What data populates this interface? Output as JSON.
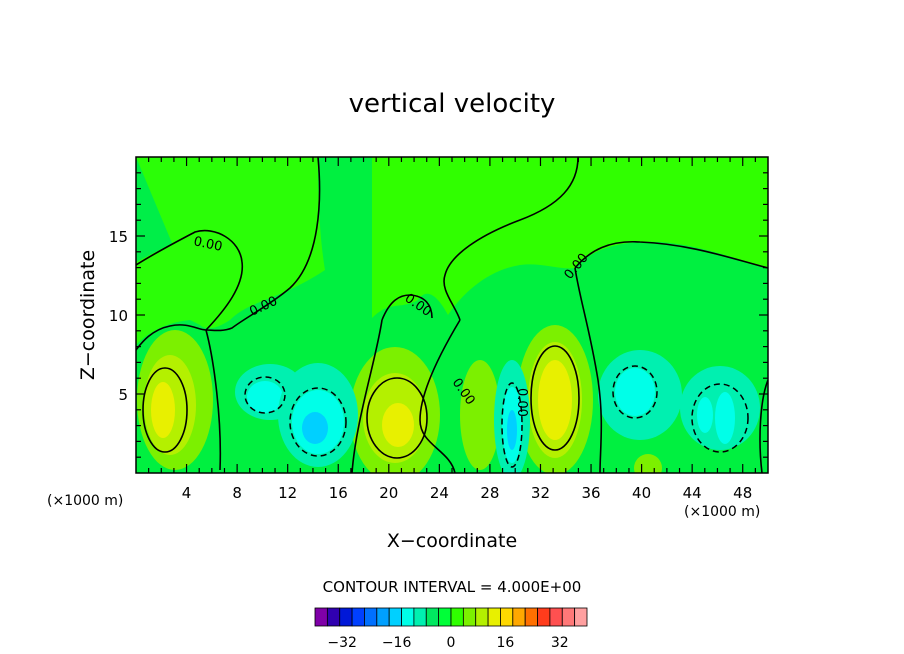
{
  "chart_data": {
    "type": "heatmap",
    "title": "vertical velocity",
    "xlabel": "X−coordinate",
    "ylabel": "Z−coordinate",
    "x_unit_left": "(×1000 m)",
    "x_unit_right": "(×1000 m)",
    "xlim": [
      0,
      50
    ],
    "ylim": [
      0,
      20
    ],
    "x_ticks": [
      4,
      8,
      12,
      16,
      20,
      24,
      28,
      32,
      36,
      40,
      44,
      48
    ],
    "y_ticks": [
      5,
      10,
      15
    ],
    "contour_interval_text": "CONTOUR INTERVAL = 4.000E+00",
    "contour_labels": [
      "0.00",
      "0.00",
      "0.00",
      "0.00",
      "0.00",
      "0.00"
    ],
    "colorbar": {
      "tick_labels": [
        "−32",
        "−16",
        "0",
        "16",
        "32"
      ],
      "tick_values": [
        -32,
        -16,
        0,
        16,
        32
      ],
      "min": -40,
      "max": 40,
      "step": 4,
      "colors": [
        "#7f00a8",
        "#3000b0",
        "#0018d8",
        "#0040ff",
        "#0070ff",
        "#00a0ff",
        "#00d0ff",
        "#00ffe8",
        "#00f0b0",
        "#00e860",
        "#00ff38",
        "#30ff00",
        "#7cf000",
        "#b4f000",
        "#e8f000",
        "#ffd800",
        "#ffa800",
        "#ff7000",
        "#ff3c1c",
        "#ff5050",
        "#ff7878",
        "#ffa0a0"
      ]
    },
    "cells": [
      {
        "x": 3,
        "z": 3.5,
        "value": 12
      },
      {
        "x": 9.5,
        "z": 4.5,
        "value": -8
      },
      {
        "x": 14,
        "z": 2.8,
        "value": -12
      },
      {
        "x": 20.5,
        "z": 3.2,
        "value": 16
      },
      {
        "x": 29.5,
        "z": 2.5,
        "value": -12
      },
      {
        "x": 32.8,
        "z": 4.5,
        "value": 16
      },
      {
        "x": 39,
        "z": 5,
        "value": -8
      },
      {
        "x": 46.5,
        "z": 3.5,
        "value": -8
      }
    ]
  }
}
